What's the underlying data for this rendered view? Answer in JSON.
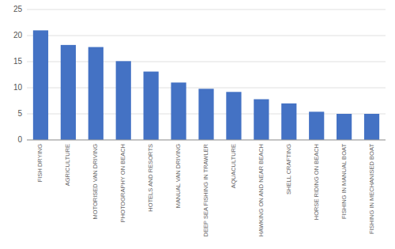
{
  "chart_data": {
    "type": "bar",
    "categories": [
      "FISH DRYING",
      "AGRICULTURE",
      "MOTORISED VAN DRIVING",
      "PHOTOGRAPHY ON BEACH",
      "HOTELS AND RESORTS",
      "MANUAL VAN DRIVING",
      "DEEP SEA FISHING IN TRAWLER",
      "AQUACULTURE",
      "HAWKING ON AND NEAR BEACH",
      "SHELL CRAFTING",
      "HORSE RIDING ON BEACH",
      "FISHING IN MANUAL BOAT",
      "FISHING IN MECHANISED BOAT"
    ],
    "values": [
      21.0,
      18.2,
      17.8,
      15.1,
      13.1,
      11.0,
      9.8,
      9.2,
      7.8,
      7.0,
      5.4,
      5.0,
      5.0
    ],
    "color": "#4472C4",
    "ylim": [
      0,
      25
    ],
    "yticks": [
      0,
      5,
      10,
      15,
      20,
      25
    ],
    "grid": true
  }
}
